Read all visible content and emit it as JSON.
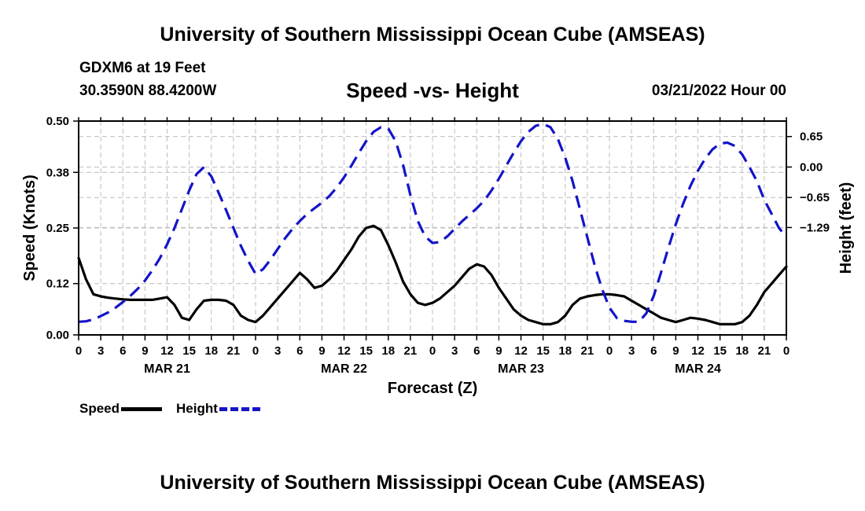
{
  "header": {
    "title": "University of Southern Mississippi Ocean Cube (AMSEAS)",
    "station": "GDXM6 at 19 Feet",
    "coords": "30.3590N  88.4200W",
    "subtitle": "Speed -vs- Height",
    "datetime": "03/21/2022 Hour 00"
  },
  "footer": {
    "title": "University of Southern Mississippi Ocean Cube (AMSEAS)"
  },
  "legend": {
    "speed_label": "Speed",
    "height_label": "Height"
  },
  "colors": {
    "speed": "#000000",
    "height": "#1414c8",
    "grid": "#bdbdbd"
  },
  "chart_data": {
    "type": "line",
    "title": "Speed -vs- Height",
    "xlabel": "Forecast (Z)",
    "ylabel": "Speed (Knots)",
    "y2label": "Height (feet)",
    "ylim": [
      0,
      0.5
    ],
    "y2lim": [
      -3.58,
      0.98
    ],
    "yticks": [
      0.0,
      0.12,
      0.25,
      0.38,
      0.5
    ],
    "ytick_labels": [
      "0.00",
      "0.12",
      "0.25",
      "0.38",
      "0.50"
    ],
    "y2ticks": [
      -1.29,
      -0.65,
      0.0,
      0.65
    ],
    "y2tick_labels": [
      "−1.29",
      "−0.65",
      "0.00",
      "0.65"
    ],
    "x_hours": [
      0,
      96
    ],
    "xtick_labels": [
      "0",
      "3",
      "6",
      "9",
      "12",
      "15",
      "18",
      "21",
      "0",
      "3",
      "6",
      "9",
      "12",
      "15",
      "18",
      "21",
      "0",
      "3",
      "6",
      "9",
      "12",
      "15",
      "18",
      "21",
      "0",
      "3",
      "6",
      "9",
      "12",
      "15",
      "18",
      "21",
      "0"
    ],
    "day_labels": [
      {
        "label": "MAR 21",
        "hour": 12
      },
      {
        "label": "MAR 22",
        "hour": 36
      },
      {
        "label": "MAR 23",
        "hour": 60
      },
      {
        "label": "MAR 24",
        "hour": 84
      }
    ],
    "series": [
      {
        "name": "Speed",
        "axis": "left",
        "style": "solid",
        "x": [
          0,
          1,
          2,
          3,
          4,
          5,
          6,
          7,
          8,
          9,
          10,
          11,
          12,
          13,
          14,
          15,
          16,
          17,
          18,
          19,
          20,
          21,
          22,
          23,
          24,
          25,
          26,
          27,
          28,
          29,
          30,
          31,
          32,
          33,
          34,
          35,
          36,
          37,
          38,
          39,
          40,
          41,
          42,
          43,
          44,
          45,
          46,
          47,
          48,
          49,
          50,
          51,
          52,
          53,
          54,
          55,
          56,
          57,
          58,
          59,
          60,
          61,
          62,
          63,
          64,
          65,
          66,
          67,
          68,
          69,
          70,
          71,
          72,
          73,
          74,
          75,
          76,
          77,
          78,
          79,
          80,
          81,
          82,
          83,
          84,
          85,
          86,
          87,
          88,
          89,
          90,
          91,
          92,
          93,
          94,
          95,
          96
        ],
        "values": [
          0.18,
          0.13,
          0.095,
          0.09,
          0.087,
          0.085,
          0.083,
          0.082,
          0.082,
          0.082,
          0.082,
          0.085,
          0.088,
          0.07,
          0.04,
          0.035,
          0.06,
          0.08,
          0.082,
          0.082,
          0.08,
          0.07,
          0.045,
          0.035,
          0.03,
          0.045,
          0.065,
          0.085,
          0.105,
          0.125,
          0.145,
          0.13,
          0.11,
          0.115,
          0.13,
          0.15,
          0.175,
          0.2,
          0.23,
          0.25,
          0.255,
          0.245,
          0.21,
          0.17,
          0.125,
          0.095,
          0.075,
          0.07,
          0.075,
          0.085,
          0.1,
          0.115,
          0.135,
          0.155,
          0.165,
          0.16,
          0.14,
          0.11,
          0.085,
          0.06,
          0.045,
          0.035,
          0.03,
          0.025,
          0.025,
          0.03,
          0.045,
          0.07,
          0.085,
          0.09,
          0.093,
          0.095,
          0.095,
          0.093,
          0.09,
          0.08,
          0.07,
          0.06,
          0.05,
          0.04,
          0.035,
          0.03,
          0.035,
          0.04,
          0.038,
          0.035,
          0.03,
          0.025,
          0.025,
          0.025,
          0.03,
          0.045,
          0.07,
          0.1,
          0.12,
          0.14,
          0.16
        ]
      },
      {
        "name": "Height",
        "axis": "right",
        "style": "dashed",
        "x": [
          0,
          1,
          2,
          3,
          4,
          5,
          6,
          7,
          8,
          9,
          10,
          11,
          12,
          13,
          14,
          15,
          16,
          17,
          18,
          19,
          20,
          21,
          22,
          23,
          24,
          25,
          26,
          27,
          28,
          29,
          30,
          31,
          32,
          33,
          34,
          35,
          36,
          37,
          38,
          39,
          40,
          41,
          42,
          43,
          44,
          45,
          46,
          47,
          48,
          49,
          50,
          51,
          52,
          53,
          54,
          55,
          56,
          57,
          58,
          59,
          60,
          61,
          62,
          63,
          64,
          65,
          66,
          67,
          68,
          69,
          70,
          71,
          72,
          73,
          74,
          75,
          76,
          77,
          78,
          79,
          80,
          81,
          82,
          83,
          84,
          85,
          86,
          87,
          88,
          89,
          90,
          91,
          92,
          93,
          94,
          95,
          96
        ],
        "values": [
          -3.3,
          -3.29,
          -3.25,
          -3.18,
          -3.1,
          -3.0,
          -2.88,
          -2.75,
          -2.6,
          -2.42,
          -2.2,
          -1.95,
          -1.65,
          -1.3,
          -0.9,
          -0.5,
          -0.15,
          0.0,
          -0.2,
          -0.55,
          -0.92,
          -1.3,
          -1.68,
          -2.0,
          -2.28,
          -2.18,
          -1.98,
          -1.75,
          -1.52,
          -1.32,
          -1.15,
          -1.0,
          -0.88,
          -0.76,
          -0.62,
          -0.44,
          -0.22,
          0.03,
          0.3,
          0.55,
          0.75,
          0.85,
          0.82,
          0.55,
          0.05,
          -0.6,
          -1.15,
          -1.48,
          -1.62,
          -1.6,
          -1.48,
          -1.32,
          -1.16,
          -1.02,
          -0.88,
          -0.72,
          -0.5,
          -0.25,
          0.03,
          0.3,
          0.55,
          0.75,
          0.88,
          0.92,
          0.85,
          0.6,
          0.2,
          -0.3,
          -0.9,
          -1.5,
          -2.1,
          -2.6,
          -3.0,
          -3.22,
          -3.28,
          -3.3,
          -3.3,
          -3.12,
          -2.75,
          -2.25,
          -1.72,
          -1.22,
          -0.78,
          -0.4,
          -0.08,
          0.18,
          0.38,
          0.5,
          0.52,
          0.45,
          0.27,
          0.0,
          -0.3,
          -0.7,
          -1.0,
          -1.3,
          -1.5
        ]
      }
    ]
  }
}
